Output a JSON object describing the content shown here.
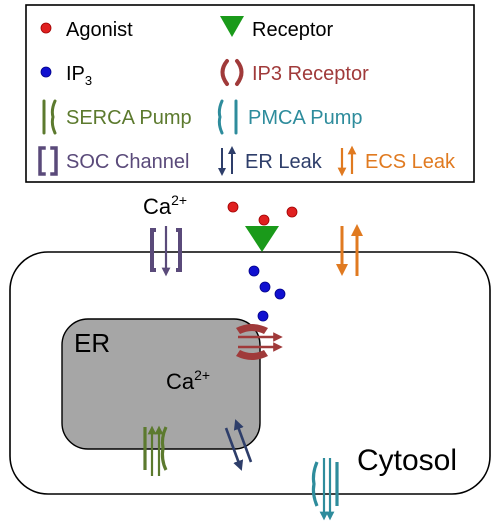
{
  "legend": {
    "agonist": "Agonist",
    "receptor": "Receptor",
    "ip3_base": "IP",
    "ip3_sub": "3",
    "ip3_receptor": "IP3 Receptor",
    "serca": "SERCA Pump",
    "pmca": "PMCA Pump",
    "soc": "SOC Channel",
    "er_leak": "ER Leak",
    "ecs_leak": "ECS Leak"
  },
  "diagram": {
    "ca_outside_base": "Ca",
    "ca_outside_sup": "2+",
    "er_label": "ER",
    "ca_er_base": "Ca",
    "ca_er_sup": "2+",
    "cytosol_label": "Cytosol"
  },
  "colors": {
    "agonist": "#e02020",
    "receptor": "#1a9a1a",
    "ip3": "#1010d0",
    "ip3_receptor": "#a03a3a",
    "serca": "#5c7a2e",
    "pmca": "#2e8c9c",
    "soc": "#5a4a7a",
    "er_leak": "#2e3e6a",
    "ecs_leak": "#e07a20",
    "er_fill": "#a6a6a6"
  }
}
